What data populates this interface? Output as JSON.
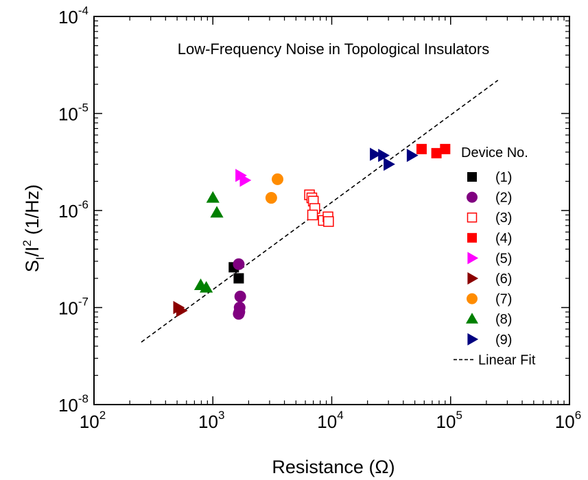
{
  "chart_data": {
    "type": "scatter",
    "title": "Low-Frequency Noise in Topological Insulators",
    "xlabel": "Resistance (Ω)",
    "ylabel": {
      "main": "S",
      "sub": "I",
      "mid": "/I",
      "sup": "2",
      "tail": " (1/Hz)"
    },
    "x_scale": "log",
    "y_scale": "log",
    "xlim": [
      100,
      1000000
    ],
    "ylim": [
      1e-08,
      0.0001
    ],
    "x_ticks": [
      {
        "value": 100,
        "base": "10",
        "exp": "2"
      },
      {
        "value": 1000,
        "base": "10",
        "exp": "3"
      },
      {
        "value": 10000,
        "base": "10",
        "exp": "4"
      },
      {
        "value": 100000,
        "base": "10",
        "exp": "5"
      },
      {
        "value": 1000000,
        "base": "10",
        "exp": "6"
      }
    ],
    "y_ticks": [
      {
        "value": 1e-08,
        "base": "10",
        "exp": "-8"
      },
      {
        "value": 1e-07,
        "base": "10",
        "exp": "-7"
      },
      {
        "value": 1e-06,
        "base": "10",
        "exp": "-6"
      },
      {
        "value": 1e-05,
        "base": "10",
        "exp": "-5"
      },
      {
        "value": 0.0001,
        "base": "10",
        "exp": "-4"
      }
    ],
    "grid": false,
    "legend": {
      "title": "Device No.",
      "placement": "right"
    },
    "series": [
      {
        "name": "(1)",
        "marker": "square",
        "filled": true,
        "color": "#000000",
        "x": [
          1500,
          1650
        ],
        "y": [
          2.6e-07,
          2e-07
        ]
      },
      {
        "name": "(2)",
        "marker": "circle",
        "filled": true,
        "color": "#800080",
        "x": [
          1650,
          1700,
          1680,
          1670,
          1650
        ],
        "y": [
          2.8e-07,
          1.3e-07,
          1e-07,
          9e-08,
          8.6e-08
        ]
      },
      {
        "name": "(3)",
        "marker": "square",
        "filled": false,
        "color": "#ff0000",
        "x": [
          6500,
          6800,
          7000,
          7200,
          6900,
          8500,
          9300,
          9400
        ],
        "y": [
          1.45e-06,
          1.35e-06,
          1.25e-06,
          1.05e-06,
          9e-07,
          7.9e-07,
          8.6e-07,
          7.7e-07
        ]
      },
      {
        "name": "(4)",
        "marker": "square",
        "filled": true,
        "color": "#ff0000",
        "x": [
          57000,
          76000,
          90000
        ],
        "y": [
          4.3e-06,
          3.9e-06,
          4.3e-06
        ]
      },
      {
        "name": "(5)",
        "marker": "triangle-right",
        "filled": true,
        "color": "#ff00ff",
        "x": [
          1700,
          1850
        ],
        "y": [
          2.3e-06,
          2.05e-06
        ]
      },
      {
        "name": "(6)",
        "marker": "triangle-right",
        "filled": true,
        "color": "#8b0000",
        "x": [
          510,
          540
        ],
        "y": [
          1e-07,
          9.3e-08
        ]
      },
      {
        "name": "(7)",
        "marker": "circle",
        "filled": true,
        "color": "#ff8c00",
        "x": [
          3500,
          3100
        ],
        "y": [
          2.1e-06,
          1.35e-06
        ]
      },
      {
        "name": "(8)",
        "marker": "triangle-up",
        "filled": true,
        "color": "#008000",
        "x": [
          1000,
          1080,
          790,
          880
        ],
        "y": [
          1.35e-06,
          9.5e-07,
          1.7e-07,
          1.6e-07
        ]
      },
      {
        "name": "(9)",
        "marker": "triangle-right",
        "filled": true,
        "color": "#000080",
        "x": [
          23000,
          27000,
          30000,
          47000
        ],
        "y": [
          3.8e-06,
          3.7e-06,
          3e-06,
          3.7e-06
        ]
      }
    ],
    "fit": {
      "name": "Linear Fit",
      "style": "dashed",
      "color": "#000000",
      "x": [
        250,
        250000
      ],
      "y": [
        4.4e-08,
        2.2e-05
      ]
    }
  }
}
